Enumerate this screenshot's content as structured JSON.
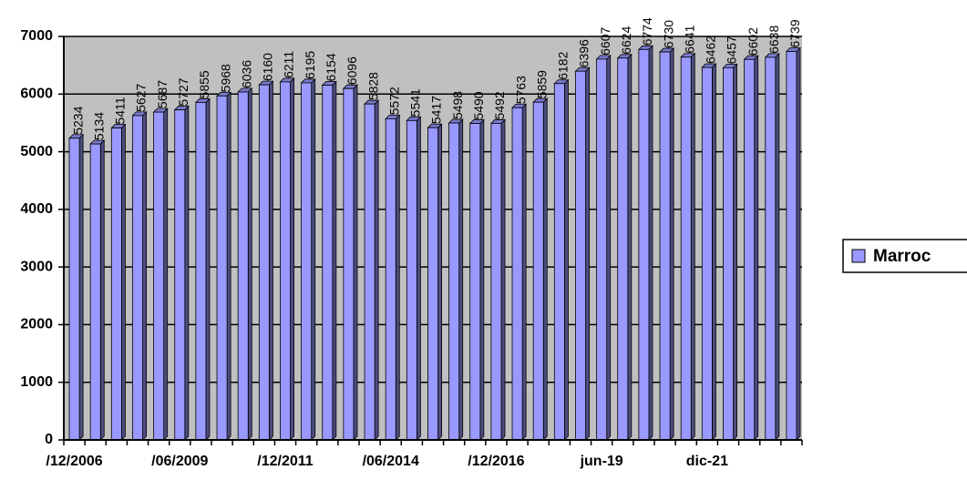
{
  "chart_data": {
    "type": "bar",
    "categories": [
      "/12/2006",
      null,
      null,
      null,
      null,
      "/06/2009",
      null,
      null,
      null,
      null,
      "/12/2011",
      null,
      null,
      null,
      null,
      "/06/2014",
      null,
      null,
      null,
      null,
      "/12/2016",
      null,
      null,
      null,
      null,
      "jun-19",
      null,
      null,
      null,
      null,
      "dic-21",
      null,
      null,
      null,
      null
    ],
    "series": [
      {
        "name": "Marroc",
        "color": "#9999ff",
        "values": [
          5234,
          5134,
          5411,
          5627,
          5687,
          5727,
          5855,
          5968,
          6036,
          6160,
          6211,
          6195,
          6154,
          6096,
          5828,
          5572,
          5541,
          5417,
          5498,
          5490,
          5492,
          5763,
          5859,
          6182,
          6396,
          6607,
          6624,
          6774,
          6730,
          6641,
          6462,
          6457,
          6602,
          6638,
          6739
        ]
      }
    ],
    "ylim": [
      0,
      7000
    ],
    "yticks": [
      0,
      1000,
      2000,
      3000,
      4000,
      5000,
      6000,
      7000
    ],
    "grid": true,
    "legend": "right"
  }
}
